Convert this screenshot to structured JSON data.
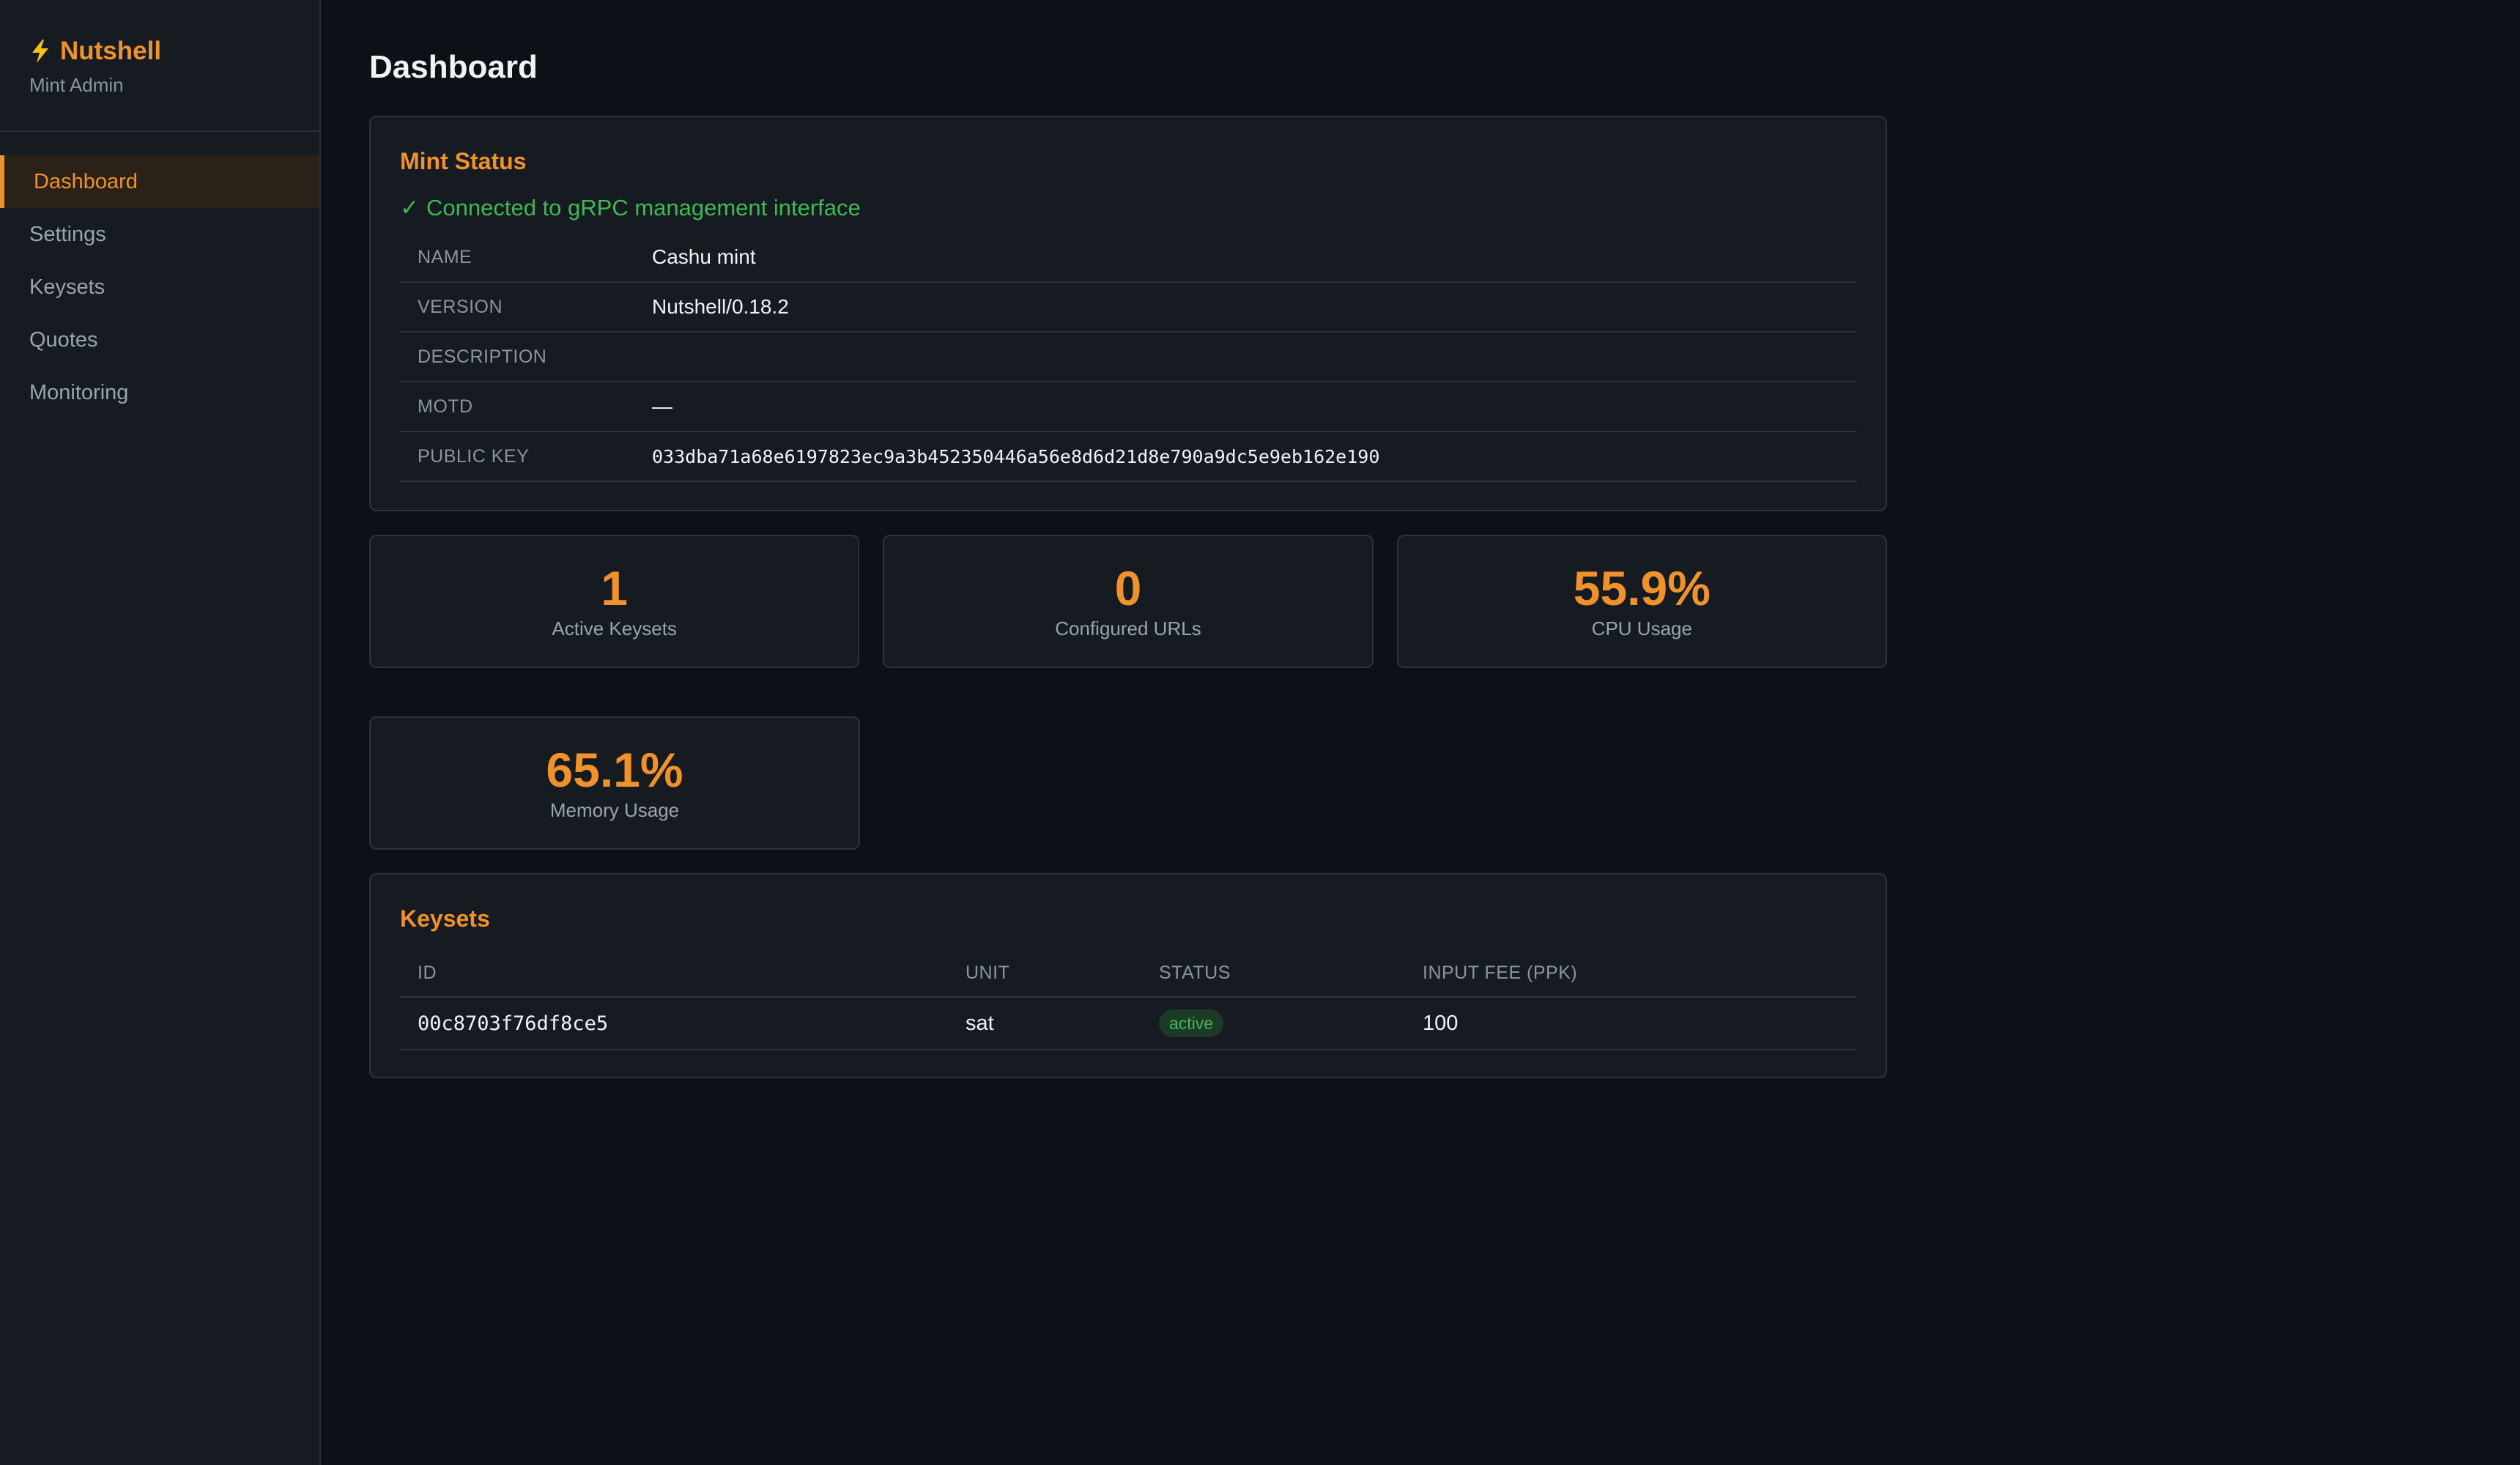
{
  "sidebar": {
    "brand": "Nutshell",
    "subtitle": "Mint Admin",
    "items": [
      {
        "label": "Dashboard"
      },
      {
        "label": "Settings"
      },
      {
        "label": "Keysets"
      },
      {
        "label": "Quotes"
      },
      {
        "label": "Monitoring"
      }
    ],
    "active": "Dashboard"
  },
  "page": {
    "title": "Dashboard"
  },
  "mint_status": {
    "title": "Mint Status",
    "connection": "Connected to gRPC management interface",
    "rows": [
      {
        "label": "NAME",
        "value": "Cashu mint"
      },
      {
        "label": "VERSION",
        "value": "Nutshell/0.18.2"
      },
      {
        "label": "DESCRIPTION",
        "value": ""
      },
      {
        "label": "MOTD",
        "value": "—"
      },
      {
        "label": "PUBLIC KEY",
        "value": "033dba71a68e6197823ec9a3b452350446a56e8d6d21d8e790a9dc5e9eb162e190"
      }
    ]
  },
  "stats": [
    {
      "value": "1",
      "label": "Active Keysets"
    },
    {
      "value": "0",
      "label": "Configured URLs"
    },
    {
      "value": "55.9%",
      "label": "CPU Usage"
    },
    {
      "value": "65.1%",
      "label": "Memory Usage"
    }
  ],
  "keysets": {
    "title": "Keysets",
    "columns": [
      "ID",
      "UNIT",
      "STATUS",
      "INPUT FEE (PPK)"
    ],
    "rows": [
      {
        "id": "00c8703f76df8ce5",
        "unit": "sat",
        "status": "active",
        "fee": "100"
      }
    ]
  },
  "colors": {
    "accent": "#f0922b",
    "success": "#3fb950",
    "background": "#0c1017",
    "panel": "#161b22"
  },
  "icons": {
    "brand": "lightning-bolt-icon",
    "connected": "checkmark-icon"
  }
}
